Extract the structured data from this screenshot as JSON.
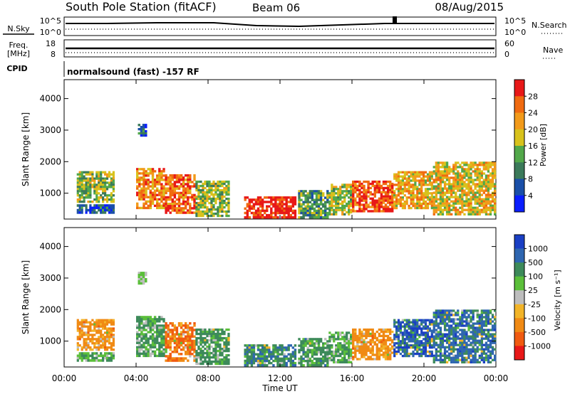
{
  "header": {
    "station": "South Pole Station (fitACF)",
    "beam": "Beam 06",
    "date": "08/Aug/2015"
  },
  "params": {
    "nsky_label": "N.Sky",
    "nsearch_label": "N.Search",
    "freq_label_top": "Freq.",
    "freq_label_unit": "[MHz]",
    "nave_label": "Nave",
    "cpid_label": "CPID",
    "cpid_value": "normalsound (fast) -157 RF",
    "noise_ticks_left": [
      "10^5",
      "10^0"
    ],
    "noise_ticks_right": [
      "10^5",
      "10^0"
    ],
    "freq_ticks": [
      "18",
      "8"
    ],
    "nave_ticks": [
      "60",
      "0"
    ]
  },
  "chart_data": [
    {
      "type": "heatmap",
      "panel": "power",
      "ylabel": "Slant Range [km]",
      "xlabel": "",
      "x_ticks": [
        "00:00",
        "04:00",
        "08:00",
        "12:00",
        "16:00",
        "20:00",
        "00:00"
      ],
      "x_range_hours": [
        0,
        24
      ],
      "y_ticks": [
        1000,
        2000,
        3000,
        4000
      ],
      "ylim": [
        180,
        4600
      ],
      "colorbar": {
        "label": "Power [dB]",
        "ticks": [
          "4",
          "8",
          "12",
          "16",
          "20",
          "24",
          "28"
        ],
        "range": [
          0,
          30
        ],
        "colors": [
          "#0a1eff",
          "#1a4fa8",
          "#3b7a5a",
          "#52a84a",
          "#d8c21c",
          "#f29a1a",
          "#f06a10",
          "#e81818"
        ]
      },
      "echo_regions": [
        {
          "t0": 0.7,
          "t1": 2.8,
          "r0": 700,
          "r1": 1700,
          "level": 14
        },
        {
          "t0": 0.7,
          "t1": 2.8,
          "r0": 350,
          "r1": 650,
          "level": 6
        },
        {
          "t0": 4.0,
          "t1": 5.6,
          "r0": 500,
          "r1": 1800,
          "level": 22
        },
        {
          "t0": 5.6,
          "t1": 7.3,
          "r0": 350,
          "r1": 1600,
          "level": 24
        },
        {
          "t0": 7.3,
          "t1": 9.2,
          "r0": 250,
          "r1": 1400,
          "level": 14
        },
        {
          "t0": 10.0,
          "t1": 12.9,
          "r0": 200,
          "r1": 900,
          "level": 29
        },
        {
          "t0": 13.0,
          "t1": 14.7,
          "r0": 200,
          "r1": 1100,
          "level": 12
        },
        {
          "t0": 14.7,
          "t1": 16.0,
          "r0": 300,
          "r1": 1300,
          "level": 16
        },
        {
          "t0": 16.0,
          "t1": 18.3,
          "r0": 400,
          "r1": 1400,
          "level": 26
        },
        {
          "t0": 18.3,
          "t1": 20.5,
          "r0": 500,
          "r1": 1700,
          "level": 20
        },
        {
          "t0": 20.5,
          "t1": 24.0,
          "r0": 300,
          "r1": 2000,
          "level": 18
        },
        {
          "t0": 4.1,
          "t1": 4.6,
          "r0": 2800,
          "r1": 3200,
          "level": 8
        }
      ]
    },
    {
      "type": "heatmap",
      "panel": "velocity",
      "ylabel": "Slant Range [km]",
      "xlabel": "Time UT",
      "x_ticks": [
        "00:00",
        "04:00",
        "08:00",
        "12:00",
        "16:00",
        "20:00",
        "00:00"
      ],
      "x_range_hours": [
        0,
        24
      ],
      "y_ticks": [
        1000,
        2000,
        3000,
        4000
      ],
      "ylim": [
        180,
        4600
      ],
      "colorbar": {
        "label": "Velocity [m s⁻¹]",
        "ticks": [
          "1000",
          "500",
          "100",
          "25",
          "-25",
          "-100",
          "-500",
          "-1000"
        ],
        "colors": [
          "#1a3fc4",
          "#2e66b0",
          "#3d8a5a",
          "#5bbf3a",
          "#bdbdbd",
          "#f2b428",
          "#f08a14",
          "#f05a10",
          "#e81818"
        ]
      },
      "echo_regions": [
        {
          "t0": 0.7,
          "t1": 2.8,
          "r0": 700,
          "r1": 1700,
          "level": -150
        },
        {
          "t0": 0.7,
          "t1": 2.8,
          "r0": 350,
          "r1": 650,
          "level": 60
        },
        {
          "t0": 4.0,
          "t1": 5.6,
          "r0": 500,
          "r1": 1800,
          "level": 80
        },
        {
          "t0": 5.6,
          "t1": 7.3,
          "r0": 350,
          "r1": 1600,
          "level": -300
        },
        {
          "t0": 7.3,
          "t1": 9.2,
          "r0": 250,
          "r1": 1400,
          "level": 120
        },
        {
          "t0": 10.0,
          "t1": 12.9,
          "r0": 200,
          "r1": 900,
          "level": 200
        },
        {
          "t0": 13.0,
          "t1": 14.7,
          "r0": 200,
          "r1": 1100,
          "level": 150
        },
        {
          "t0": 14.7,
          "t1": 16.0,
          "r0": 300,
          "r1": 1300,
          "level": 60
        },
        {
          "t0": 16.0,
          "t1": 18.3,
          "r0": 400,
          "r1": 1400,
          "level": -150
        },
        {
          "t0": 18.3,
          "t1": 20.5,
          "r0": 500,
          "r1": 1700,
          "level": 600
        },
        {
          "t0": 20.5,
          "t1": 24.0,
          "r0": 300,
          "r1": 2000,
          "level": 400
        },
        {
          "t0": 4.1,
          "t1": 4.6,
          "r0": 2800,
          "r1": 3200,
          "level": 10
        }
      ]
    }
  ]
}
